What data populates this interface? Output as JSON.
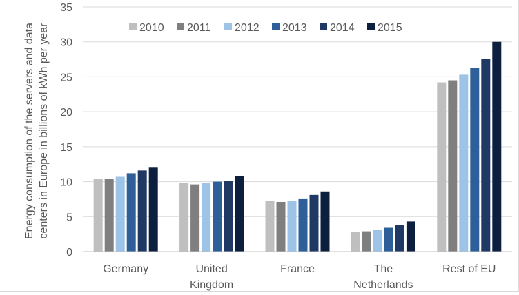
{
  "chart_data": {
    "type": "bar",
    "ylabel": "Energy consumption of the servers and data centers in Europe in billions of kWh per year",
    "ylabel_lines": [
      "Energy consumption of the servers and data",
      "centers in Europe in billions of kWh per year"
    ],
    "ylim": [
      0,
      35
    ],
    "yticks": [
      "0",
      "5",
      "10",
      "15",
      "20",
      "25",
      "30",
      "35"
    ],
    "ytick_values": [
      0,
      5,
      10,
      15,
      20,
      25,
      30,
      35
    ],
    "grid": true,
    "legend_position": "top-left",
    "categories": [
      "Germany",
      "United Kingdom",
      "France",
      "The Netherlands",
      "Rest of EU"
    ],
    "category_lines": [
      [
        "Germany"
      ],
      [
        "United",
        "Kingdom"
      ],
      [
        "France"
      ],
      [
        "The",
        "Netherlands"
      ],
      [
        "Rest of EU"
      ]
    ],
    "series": [
      {
        "name": "2010",
        "color": "#bfbfbf",
        "values": [
          10.4,
          9.8,
          7.2,
          2.8,
          24.2
        ]
      },
      {
        "name": "2011",
        "color": "#7f7f7f",
        "values": [
          10.4,
          9.6,
          7.1,
          2.9,
          24.5
        ]
      },
      {
        "name": "2012",
        "color": "#9dc3e6",
        "values": [
          10.7,
          9.8,
          7.2,
          3.1,
          25.3
        ]
      },
      {
        "name": "2013",
        "color": "#2e5f98",
        "values": [
          11.2,
          10.0,
          7.6,
          3.4,
          26.3
        ]
      },
      {
        "name": "2014",
        "color": "#203864",
        "values": [
          11.6,
          10.1,
          8.1,
          3.8,
          27.6
        ]
      },
      {
        "name": "2015",
        "color": "#0c1f3f",
        "values": [
          12.0,
          10.8,
          8.6,
          4.3,
          30.0
        ]
      }
    ]
  }
}
